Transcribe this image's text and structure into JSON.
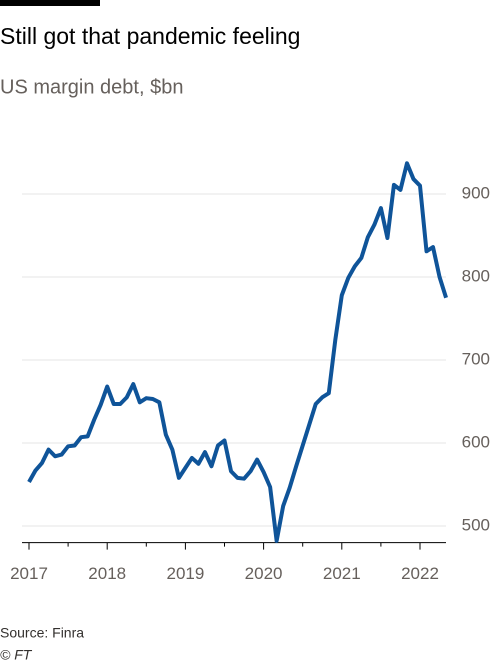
{
  "chart_data": {
    "type": "line",
    "title": "Still got that pandemic feeling",
    "subtitle": "US margin debt, $bn",
    "source": "Source: Finra",
    "credit": "© FT",
    "categories": [
      "2017",
      null,
      null,
      null,
      null,
      null,
      null,
      null,
      null,
      null,
      null,
      null,
      "2018",
      null,
      null,
      null,
      null,
      null,
      null,
      null,
      null,
      null,
      null,
      null,
      "2019",
      null,
      null,
      null,
      null,
      null,
      null,
      null,
      null,
      null,
      null,
      null,
      "2020",
      null,
      null,
      null,
      null,
      null,
      null,
      null,
      null,
      null,
      null,
      null,
      "2021",
      null,
      null,
      null,
      null,
      null,
      null,
      null,
      null,
      null,
      null,
      null,
      "2022",
      null,
      null,
      null,
      null
    ],
    "series": [
      {
        "name": "US margin debt",
        "color": "#0f5499",
        "values": [
          553,
          567,
          576,
          592,
          584,
          586,
          596,
          597,
          607,
          608,
          628,
          646,
          668,
          647,
          647,
          655,
          671,
          649,
          654,
          653,
          649,
          610,
          592,
          558,
          570,
          582,
          575,
          589,
          572,
          597,
          603,
          566,
          558,
          557,
          566,
          580,
          565,
          547,
          482,
          524,
          546,
          572,
          597,
          622,
          647,
          655,
          660,
          724,
          778,
          799,
          813,
          823,
          848,
          863,
          883,
          847,
          911,
          905,
          937,
          918,
          910,
          831,
          836,
          800,
          775
        ]
      }
    ],
    "ylim": [
      480,
      950
    ],
    "yticks": [
      500,
      600,
      700,
      800,
      900
    ],
    "grid": true
  }
}
